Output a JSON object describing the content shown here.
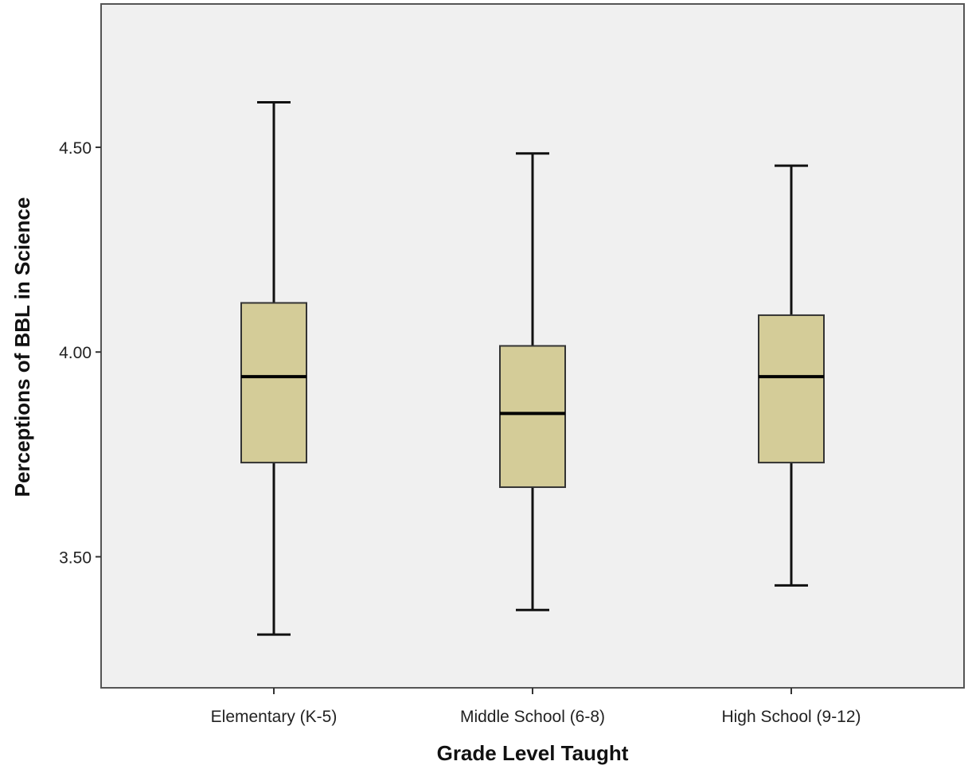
{
  "chart_data": {
    "type": "boxplot",
    "title": "",
    "xlabel": "Grade Level Taught",
    "ylabel": "Perceptions of BBL in Science",
    "ylim": [
      3.18,
      4.85
    ],
    "yticks": [
      3.5,
      4.0,
      4.5
    ],
    "ytick_labels": [
      "3.50",
      "4.00",
      "4.50"
    ],
    "grid": false,
    "box_color": "#d4cc98",
    "plot_background": "#f0f0f0",
    "categories": [
      "Elementary (K-5)",
      "Middle School (6-8)",
      "High School (9-12)"
    ],
    "boxes": [
      {
        "min": 3.31,
        "q1": 3.73,
        "median": 3.94,
        "q3": 4.12,
        "max": 4.61
      },
      {
        "min": 3.37,
        "q1": 3.67,
        "median": 3.85,
        "q3": 4.015,
        "max": 4.485
      },
      {
        "min": 3.43,
        "q1": 3.73,
        "median": 3.94,
        "q3": 4.09,
        "max": 4.455
      }
    ]
  }
}
